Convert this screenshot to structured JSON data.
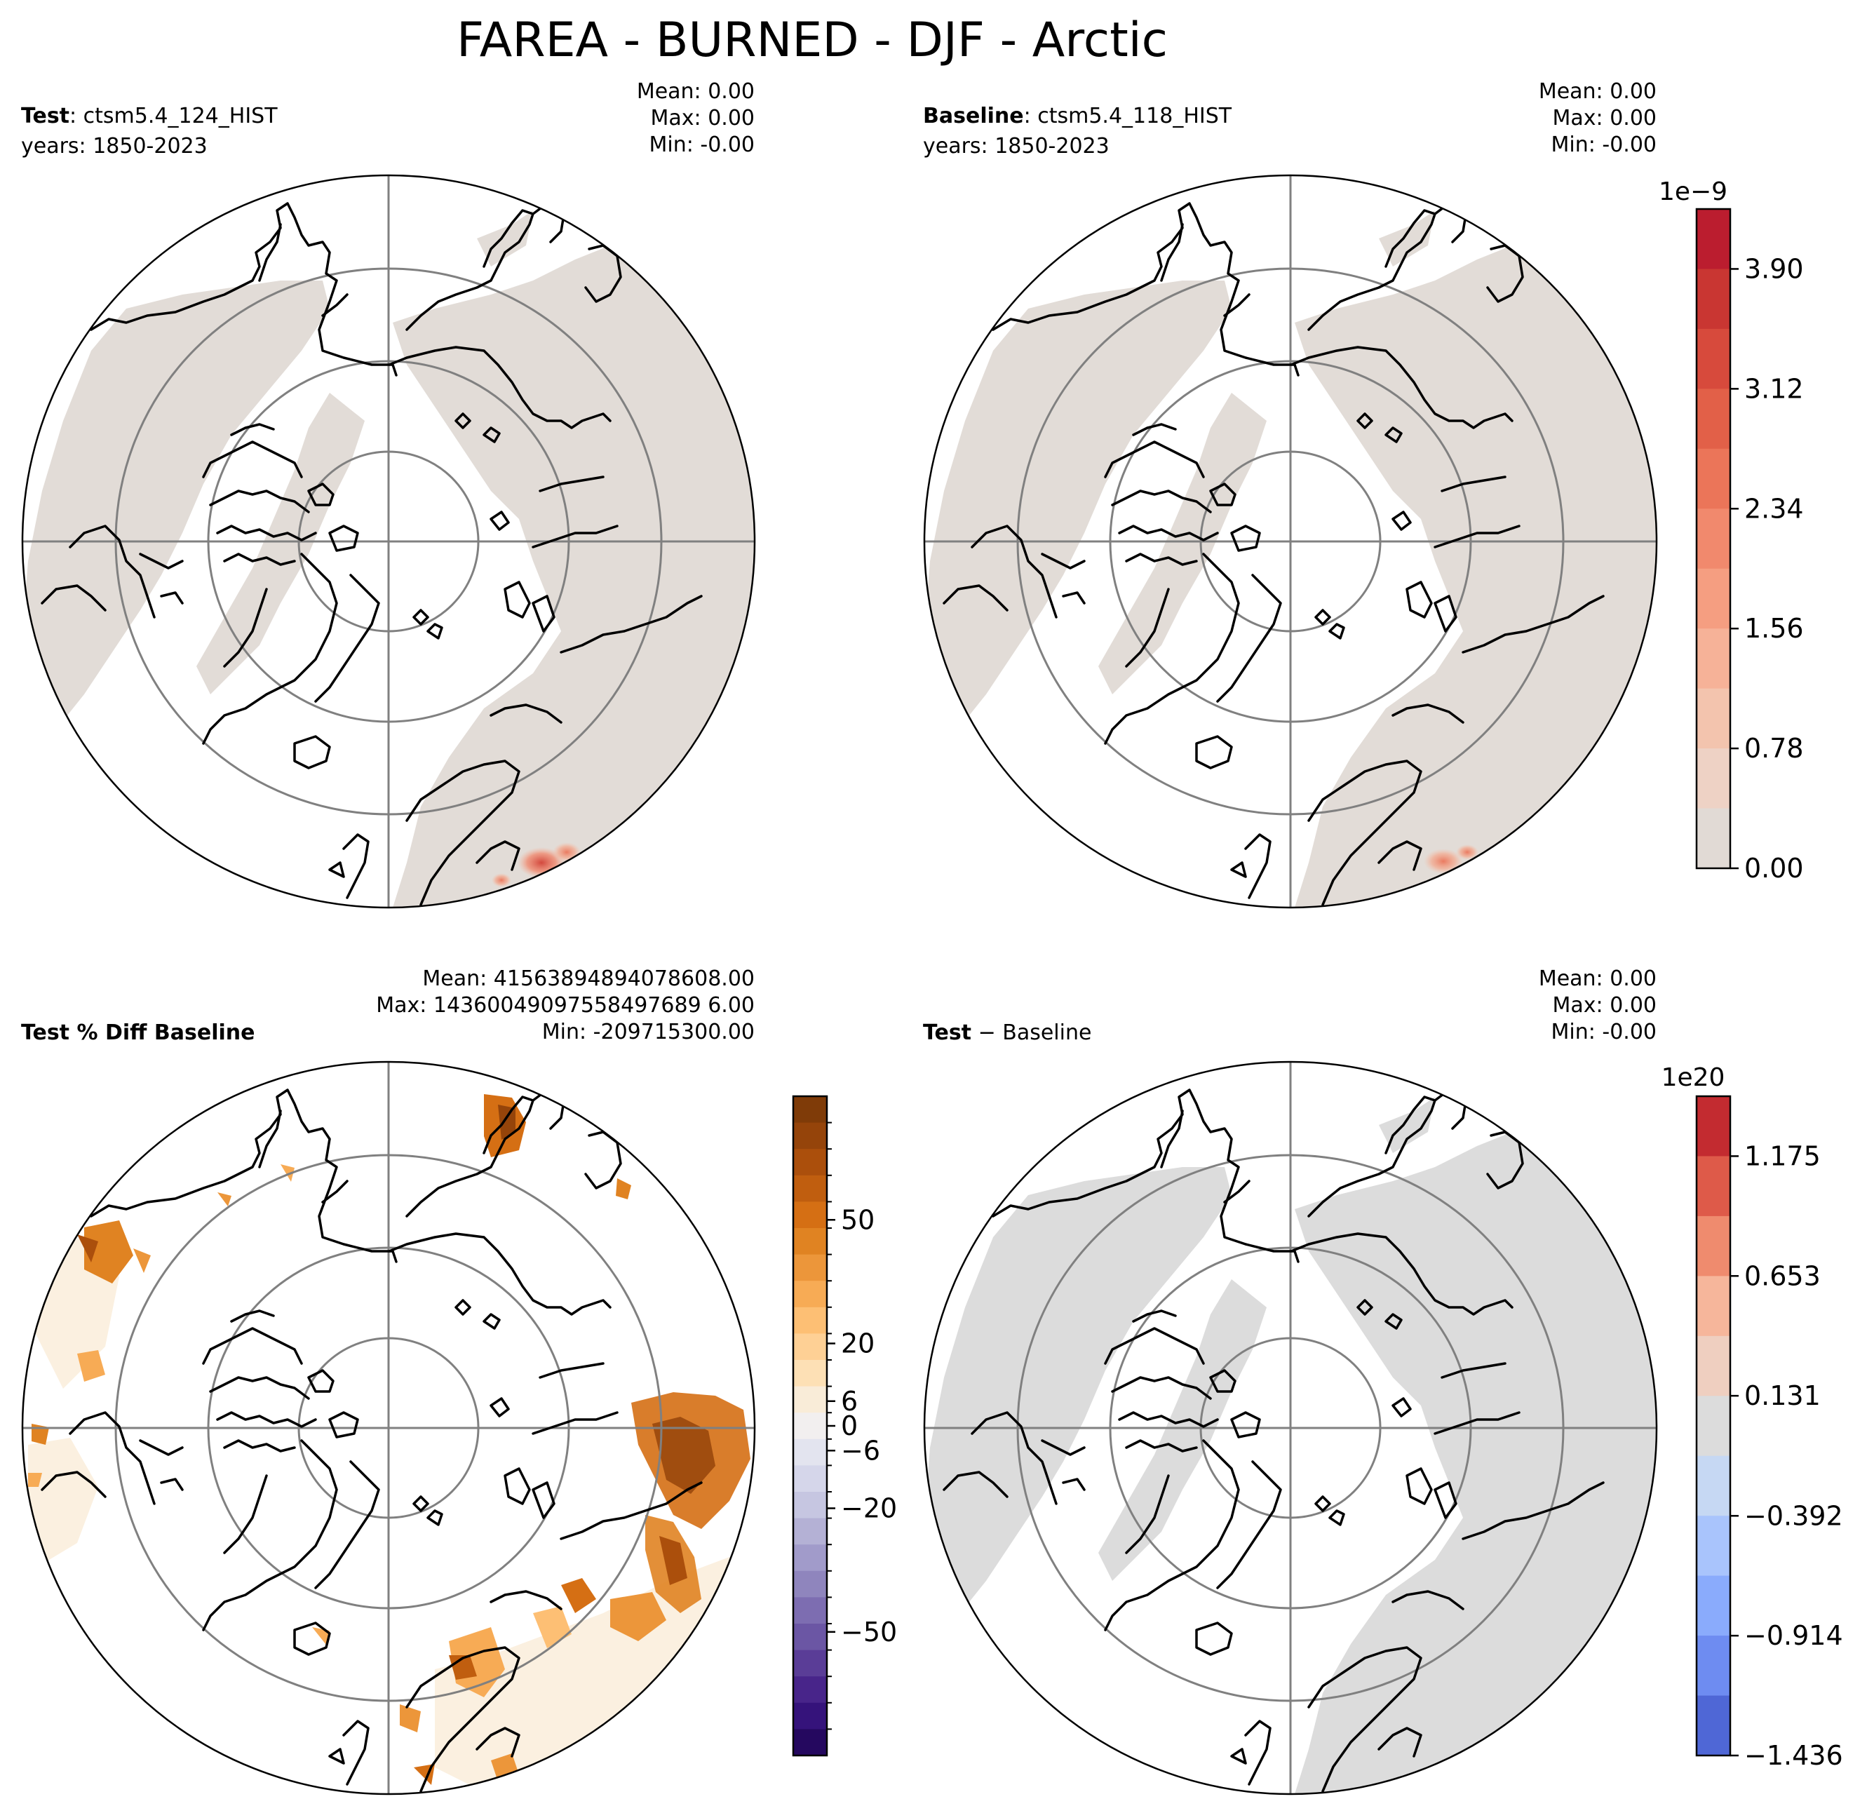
{
  "figure_title": "FAREA - BURNED - DJF - Arctic",
  "chart_data": [
    {
      "type": "map",
      "panel": "test",
      "label_bold": "Test",
      "label_rest": ": ctsm5.4_124_HIST",
      "years": "years: 1850-2023",
      "stats": {
        "mean": "Mean:  0.00",
        "max": "Max:  0.00",
        "min": "Min: -0.00"
      },
      "projection": "north polar stereographic",
      "land_fill": "#e2dcd7",
      "hotspots": [
        {
          "lon": 46,
          "lat": 44,
          "intensity": "high"
        }
      ]
    },
    {
      "type": "map",
      "panel": "baseline",
      "label_bold": "Baseline",
      "label_rest": ": ctsm5.4_118_HIST",
      "years": "years: 1850-2023",
      "stats": {
        "mean": "Mean:  0.00",
        "max": "Max:  0.00",
        "min": "Min: -0.00"
      },
      "projection": "north polar stereographic",
      "land_fill": "#e2dcd7",
      "hotspots": [
        {
          "lon": 46,
          "lat": 44,
          "intensity": "medium"
        }
      ],
      "colorbar": {
        "scale_label": "1e−9",
        "tick_labels": [
          "3.90",
          "3.12",
          "2.34",
          "1.56",
          "0.78",
          "0.00"
        ],
        "ticks": [
          3.9,
          3.12,
          2.34,
          1.56,
          0.78,
          0.0
        ],
        "range": [
          0,
          4.29
        ],
        "colors": [
          "#e1dad5",
          "#eed2c5",
          "#f3c4ae",
          "#f6b298",
          "#f59e81",
          "#f1896d",
          "#eb7559",
          "#e26048",
          "#d74a3c",
          "#c93632",
          "#bb1d2f"
        ]
      }
    },
    {
      "type": "map",
      "panel": "percent_diff",
      "label_bold": "Test % Diff Baseline",
      "stats": {
        "mean": "Mean: 41563894894078608.00",
        "max": "Max: 14360049097558497689 6.00",
        "min": "Min: -209715300.00"
      },
      "projection": "north polar stereographic",
      "colorbar": {
        "scale_label": "",
        "tick_labels": [
          "50",
          "20",
          "6",
          "0",
          "−6",
          "−20",
          "−50"
        ],
        "ticks": [
          50,
          20,
          6,
          0,
          -6,
          -20,
          -50
        ],
        "range": [
          -80,
          80
        ],
        "colors_top_down": [
          "#7f3b08",
          "#95440a",
          "#ab4f0c",
          "#c05e0f",
          "#d56f14",
          "#e08322",
          "#ec963a",
          "#f7ab55",
          "#fdbf74",
          "#fed095",
          "#fde0b5",
          "#f9ecd8",
          "#f2efef",
          "#e3e4ef",
          "#d5d6ea",
          "#c6c6e1",
          "#b4b1d5",
          "#a19bca",
          "#8f85bd",
          "#7d6db1",
          "#6b56a4",
          "#5a3d97",
          "#48258a",
          "#35137b",
          "#25085f"
        ]
      }
    },
    {
      "type": "map",
      "panel": "difference",
      "label_bold": "Test",
      "label_rest": " − Baseline",
      "stats": {
        "mean": "Mean:  0.00",
        "max": "Max:  0.00",
        "min": "Min: -0.00"
      },
      "projection": "north polar stereographic",
      "land_fill": "#dcdcdc",
      "colorbar": {
        "scale_label": "1e20",
        "tick_labels": [
          "1.175",
          "0.653",
          "0.131",
          "−0.392",
          "−0.914",
          "−1.436"
        ],
        "ticks": [
          1.175,
          0.653,
          0.131,
          -0.392,
          -0.914,
          -1.436
        ],
        "range": [
          -1.436,
          1.436
        ],
        "colors_top_down": [
          "#c32b30",
          "#de5a49",
          "#ef8b6e",
          "#f6b69b",
          "#efcfc0",
          "#dcdcdc",
          "#c6d8f3",
          "#a9c4fc",
          "#8aabfc",
          "#6e8cf1",
          "#4f67d6"
        ]
      }
    }
  ]
}
